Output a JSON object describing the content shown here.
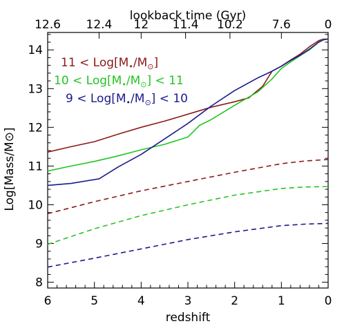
{
  "chart_data": {
    "type": "line",
    "xlabel": "redshift",
    "ylabel": "Log[Mass/M⊙]",
    "top_xlabel": "lookback time (Gyr)",
    "xlim": [
      6,
      0
    ],
    "ylim": [
      7.85,
      14.45
    ],
    "x_ticks": [
      "6",
      "5",
      "4",
      "3",
      "2",
      "1",
      "0"
    ],
    "y_ticks": [
      "8",
      "9",
      "10",
      "11",
      "12",
      "13",
      "14"
    ],
    "top_ticks": [
      {
        "label": "12.6",
        "z": 6.0
      },
      {
        "label": "12.4",
        "z": 4.9
      },
      {
        "label": "12",
        "z": 4.0
      },
      {
        "label": "11.4",
        "z": 3.05
      },
      {
        "label": "10.2",
        "z": 2.1
      },
      {
        "label": "7.6",
        "z": 1.0
      },
      {
        "label": "0",
        "z": 0.0
      }
    ],
    "legend": [
      {
        "prefix": "11 <",
        "suffix": "",
        "color": "#8b1a1a"
      },
      {
        "prefix": "10 <",
        "suffix": "< 11",
        "color": "#22c422"
      },
      {
        "prefix": "9 <",
        "suffix": "< 10",
        "color": "#1a1a8b"
      }
    ],
    "series": [
      {
        "kind": "solid",
        "color": "#8b1a1a",
        "x": [
          6,
          5.5,
          5,
          4.5,
          4,
          3.5,
          3,
          2.5,
          2,
          1.7,
          1.4,
          1.2,
          1,
          0.8,
          0.6,
          0.4,
          0.2,
          0.1,
          0
        ],
        "y": [
          11.36,
          11.5,
          11.63,
          11.82,
          12.0,
          12.16,
          12.34,
          12.52,
          12.66,
          12.76,
          13.06,
          13.45,
          13.58,
          13.74,
          13.89,
          14.08,
          14.24,
          14.28,
          14.28
        ]
      },
      {
        "kind": "solid",
        "color": "#22c422",
        "x": [
          6,
          5.5,
          5,
          4.5,
          4,
          3.5,
          3,
          2.75,
          2.5,
          2,
          1.5,
          1.2,
          1,
          0.8,
          0.6,
          0.4,
          0.2,
          0.1,
          0
        ],
        "y": [
          10.87,
          11.0,
          11.12,
          11.26,
          11.42,
          11.56,
          11.75,
          12.05,
          12.2,
          12.57,
          12.92,
          13.25,
          13.52,
          13.69,
          13.85,
          14.0,
          14.2,
          14.27,
          14.28
        ]
      },
      {
        "kind": "solid",
        "color": "#1a1a8b",
        "x": [
          6,
          5.5,
          4.9,
          4.5,
          4,
          3.5,
          3,
          2.5,
          2,
          1.5,
          1.2,
          1,
          0.8,
          0.6,
          0.4,
          0.2,
          0.1,
          0
        ],
        "y": [
          10.5,
          10.55,
          10.67,
          10.97,
          11.3,
          11.7,
          12.1,
          12.55,
          12.95,
          13.28,
          13.45,
          13.58,
          13.73,
          13.86,
          14.02,
          14.2,
          14.26,
          14.28
        ]
      },
      {
        "kind": "dashed",
        "color": "#8b1a1a",
        "x": [
          6,
          5,
          4,
          3,
          2,
          1,
          0.5,
          0
        ],
        "y": [
          9.77,
          10.08,
          10.36,
          10.6,
          10.84,
          11.06,
          11.13,
          11.17
        ]
      },
      {
        "kind": "dashed",
        "color": "#22c422",
        "x": [
          6,
          5,
          4,
          3,
          2,
          1,
          0.5,
          0
        ],
        "y": [
          8.98,
          9.38,
          9.72,
          10.0,
          10.25,
          10.42,
          10.46,
          10.47
        ]
      },
      {
        "kind": "dashed",
        "color": "#1a1a8b",
        "x": [
          6,
          5,
          4,
          3,
          2,
          1,
          0.5,
          0
        ],
        "y": [
          8.39,
          8.62,
          8.86,
          9.1,
          9.3,
          9.46,
          9.5,
          9.52
        ]
      }
    ]
  }
}
